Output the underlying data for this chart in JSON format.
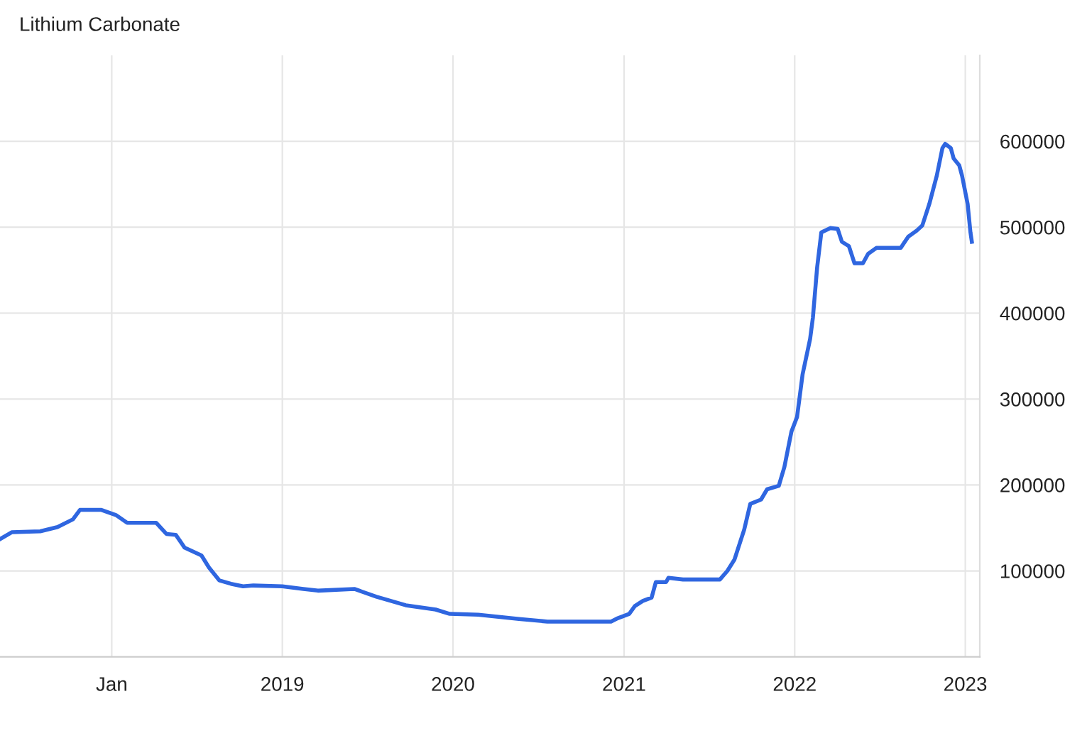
{
  "chart_data": {
    "type": "line",
    "title": "Lithium Carbonate",
    "x": [
      "2017-05-07",
      "2017-06-01",
      "2017-08-01",
      "2017-09-07",
      "2017-10-10",
      "2017-10-25",
      "2017-12-10",
      "2018-01-10",
      "2018-02-03",
      "2018-04-06",
      "2018-04-28",
      "2018-05-18",
      "2018-06-06",
      "2018-07-12",
      "2018-07-28",
      "2018-08-19",
      "2018-09-13",
      "2018-10-09",
      "2018-10-31",
      "2019-01-01",
      "2019-02-15",
      "2019-03-18",
      "2019-06-04",
      "2019-07-21",
      "2019-09-22",
      "2019-11-25",
      "2019-12-25",
      "2020-02-24",
      "2020-05-21",
      "2020-07-21",
      "2020-09-19",
      "2020-12-04",
      "2020-12-19",
      "2021-01-12",
      "2021-01-24",
      "2021-02-10",
      "2021-03-01",
      "2021-03-10",
      "2021-04-01",
      "2021-04-06",
      "2021-05-07",
      "2021-07-25",
      "2021-08-10",
      "2021-08-25",
      "2021-09-15",
      "2021-09-28",
      "2021-10-21",
      "2021-11-03",
      "2021-11-28",
      "2021-12-10",
      "2021-12-25",
      "2022-01-06",
      "2022-01-18",
      "2022-02-03",
      "2022-02-09",
      "2022-02-18",
      "2022-02-27",
      "2022-03-18",
      "2022-04-03",
      "2022-04-12",
      "2022-04-27",
      "2022-05-09",
      "2022-05-27",
      "2022-06-07",
      "2022-06-25",
      "2022-07-25",
      "2022-08-16",
      "2022-09-01",
      "2022-09-19",
      "2022-10-01",
      "2022-10-16",
      "2022-11-01",
      "2022-11-13",
      "2022-11-19",
      "2022-12-01",
      "2022-12-07",
      "2022-12-19",
      "2022-12-25",
      "2023-01-06",
      "2023-01-12",
      "2023-01-15"
    ],
    "series": [
      {
        "color": "#2f66e0",
        "values": [
          137000,
          145000,
          146000,
          151000,
          160000,
          171000,
          171000,
          165000,
          156000,
          156000,
          143000,
          142000,
          127000,
          118000,
          104000,
          89000,
          85000,
          82000,
          83000,
          82000,
          79000,
          77000,
          79000,
          70000,
          60000,
          55000,
          50000,
          49000,
          44000,
          41000,
          41000,
          41000,
          45000,
          50000,
          59000,
          65000,
          69000,
          87000,
          87000,
          92000,
          90000,
          90000,
          100000,
          113000,
          148000,
          178000,
          183000,
          195000,
          199000,
          221000,
          262000,
          279000,
          329000,
          370000,
          395000,
          453000,
          494000,
          499000,
          498000,
          483000,
          478000,
          458000,
          458000,
          469000,
          476000,
          476000,
          476000,
          489000,
          496000,
          502000,
          527000,
          560000,
          592000,
          597000,
          592000,
          580000,
          572000,
          560000,
          527000,
          494000,
          483000
        ]
      }
    ],
    "xlim": [
      "2017-05-07",
      "2023-02-01"
    ],
    "xticks": [
      {
        "value": "2018-01-01",
        "label": "Jan"
      },
      {
        "value": "2019-01-01",
        "label": "2019"
      },
      {
        "value": "2020-01-01",
        "label": "2020"
      },
      {
        "value": "2021-01-01",
        "label": "2021"
      },
      {
        "value": "2022-01-01",
        "label": "2022"
      },
      {
        "value": "2023-01-01",
        "label": "2023"
      }
    ],
    "ylim": [
      0,
      700000
    ],
    "yticks": [
      100000,
      200000,
      300000,
      400000,
      500000,
      600000
    ],
    "grid": true,
    "marker": "none",
    "line_style": "solid"
  }
}
